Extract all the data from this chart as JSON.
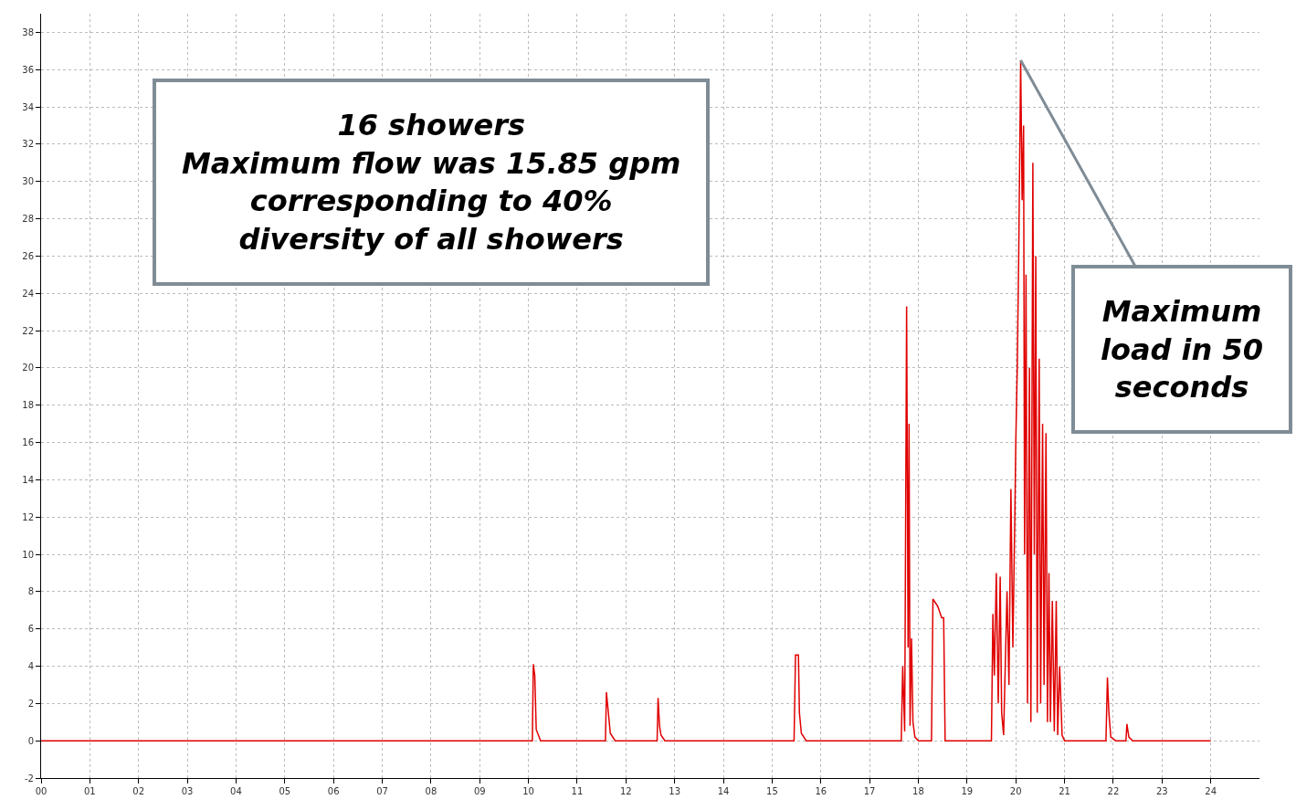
{
  "chart_data": {
    "type": "line",
    "marker": "none",
    "line_style": "solid",
    "grid": true,
    "xlim": [
      0,
      25
    ],
    "ylim": [
      -2,
      39
    ],
    "xticks": [
      {
        "value": 0,
        "label": "00"
      },
      {
        "value": 1,
        "label": "01"
      },
      {
        "value": 2,
        "label": "02"
      },
      {
        "value": 3,
        "label": "03"
      },
      {
        "value": 4,
        "label": "04"
      },
      {
        "value": 5,
        "label": "05"
      },
      {
        "value": 6,
        "label": "06"
      },
      {
        "value": 7,
        "label": "07"
      },
      {
        "value": 8,
        "label": "08"
      },
      {
        "value": 9,
        "label": "09"
      },
      10,
      11,
      12,
      13,
      14,
      15,
      16,
      17,
      18,
      19,
      20,
      21,
      22,
      23,
      24
    ],
    "yticks": [
      -2,
      0,
      2,
      4,
      6,
      8,
      10,
      12,
      14,
      16,
      18,
      20,
      22,
      24,
      26,
      28,
      30,
      32,
      34,
      36,
      38
    ],
    "annotations": [
      "16 showers\nMaximum flow was 15.85 gpm\ncorresponding to 40%\ndiversity of all showers",
      {
        "text": "Maximum\nload in 50\nseconds",
        "x": 20.1,
        "y": 36.5
      }
    ],
    "series": [
      {
        "color": "#e00000",
        "x": [
          0,
          10.08,
          10.1,
          10.13,
          10.16,
          10.25,
          11.58,
          11.6,
          11.64,
          11.68,
          11.78,
          12.64,
          12.66,
          12.69,
          12.72,
          12.8,
          15.45,
          15.48,
          15.54,
          15.56,
          15.6,
          15.7,
          17.65,
          17.68,
          17.72,
          17.76,
          17.79,
          17.81,
          17.83,
          17.86,
          17.89,
          17.93,
          18.0,
          18.27,
          18.3,
          18.4,
          18.48,
          18.52,
          18.55,
          19.5,
          19.53,
          19.56,
          19.6,
          19.64,
          19.68,
          19.71,
          19.75,
          19.82,
          19.86,
          19.9,
          19.94,
          19.98,
          20.0,
          20.03,
          20.06,
          20.1,
          20.13,
          20.16,
          20.18,
          20.21,
          20.24,
          20.28,
          20.31,
          20.35,
          20.38,
          20.41,
          20.44,
          20.48,
          20.51,
          20.55,
          20.58,
          20.62,
          20.65,
          20.68,
          20.71,
          20.75,
          20.79,
          20.83,
          20.86,
          20.9,
          20.95,
          21.0,
          21.85,
          21.88,
          21.91,
          21.95,
          22.05,
          22.26,
          22.28,
          22.32,
          22.4,
          24
        ],
        "values": [
          0,
          0,
          4.1,
          3.5,
          0.6,
          0,
          0,
          2.6,
          1.5,
          0.4,
          0,
          0,
          2.3,
          0.8,
          0.3,
          0,
          0,
          4.6,
          4.6,
          1.5,
          0.4,
          0,
          0,
          4,
          0.5,
          23.3,
          5,
          17,
          0.8,
          5.5,
          1,
          0.2,
          0,
          0,
          7.6,
          7.2,
          6.6,
          6.6,
          0,
          0,
          6.8,
          3.5,
          9,
          2,
          8.8,
          1.5,
          0.3,
          8,
          3,
          13.5,
          5,
          12,
          16,
          20,
          26,
          36.5,
          29,
          33,
          10,
          25,
          2,
          20,
          1,
          31,
          10,
          26,
          1.5,
          20.5,
          2,
          17,
          3,
          16.5,
          1,
          9,
          1,
          7.5,
          0.5,
          7.5,
          0.3,
          4,
          0.3,
          0,
          0,
          3.4,
          1.5,
          0.2,
          0,
          0,
          0.9,
          0.2,
          0,
          0
        ]
      }
    ]
  }
}
